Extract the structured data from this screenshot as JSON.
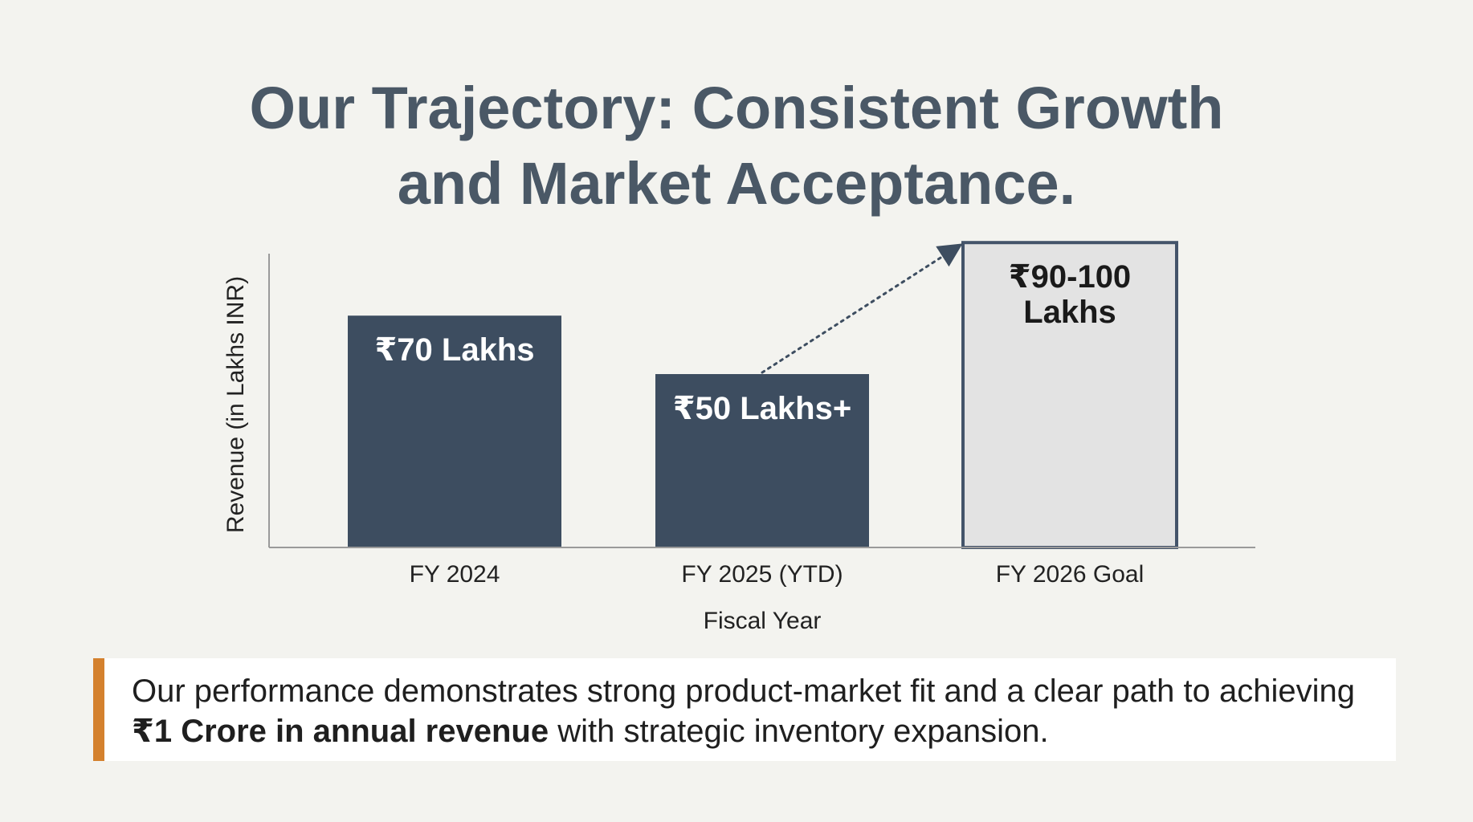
{
  "title": {
    "line1": "Our Trajectory: Consistent Growth",
    "line2": "and Market Acceptance."
  },
  "chart_data": {
    "type": "bar",
    "categories": [
      "FY 2024",
      "FY 2025 (YTD)",
      "FY 2026 Goal"
    ],
    "values": [
      70,
      50,
      95
    ],
    "data_labels": [
      [
        "₹70 Lakhs"
      ],
      [
        "₹50 Lakhs+"
      ],
      [
        "₹90-100",
        "Lakhs"
      ]
    ],
    "xlabel": "Fiscal Year",
    "ylabel": "Revenue (in Lakhs INR)",
    "ylim": [
      0,
      100
    ],
    "grid": false,
    "annotations": [
      "dotted arrow from FY 2025 (YTD) bar to FY 2026 Goal bar"
    ],
    "colors": {
      "actual": "#3d4d60",
      "goal_fill": "#e3e3e3",
      "goal_stroke": "#44546a",
      "text_on_dark": "#ffffff",
      "text_on_light": "#1a1a1a",
      "axis": "#9a9a9a"
    }
  },
  "callout": {
    "prefix": "Our performance demonstrates strong product-market fit and a clear path to achieving",
    "bold": "₹1 Crore in annual revenue",
    "suffix": " with strategic inventory expansion.",
    "accent_color": "#d4812e"
  }
}
